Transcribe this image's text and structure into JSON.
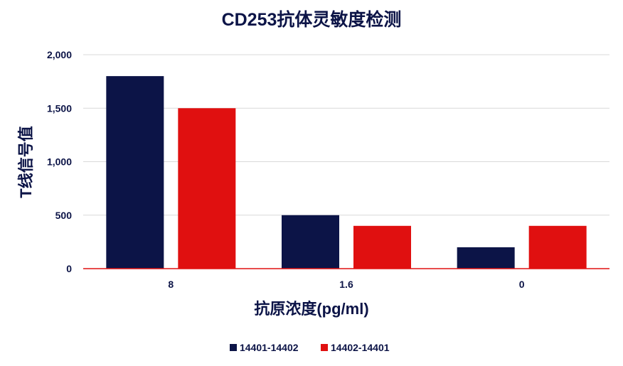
{
  "chart_data": {
    "type": "bar",
    "title": "CD253抗体灵敏度检测",
    "xlabel": "抗原浓度(pg/ml)",
    "ylabel": "T线信号值",
    "categories": [
      "8",
      "1.6",
      "0"
    ],
    "series": [
      {
        "name": "14401-14402",
        "values": [
          1800,
          500,
          200
        ],
        "color": "#0c1447"
      },
      {
        "name": "14402-14401",
        "values": [
          1500,
          400,
          400
        ],
        "color": "#e01010"
      }
    ],
    "ylim": [
      0,
      2000
    ],
    "yticks": [
      0,
      500,
      1000,
      1500,
      2000
    ],
    "ytick_labels": [
      "0",
      "500",
      "1,000",
      "1,500",
      "2,000"
    ],
    "grid": true,
    "legend": "bottom",
    "colors": {
      "text": "#0c1447",
      "axis": "#e01010",
      "grid": "#d9d9d9"
    }
  }
}
